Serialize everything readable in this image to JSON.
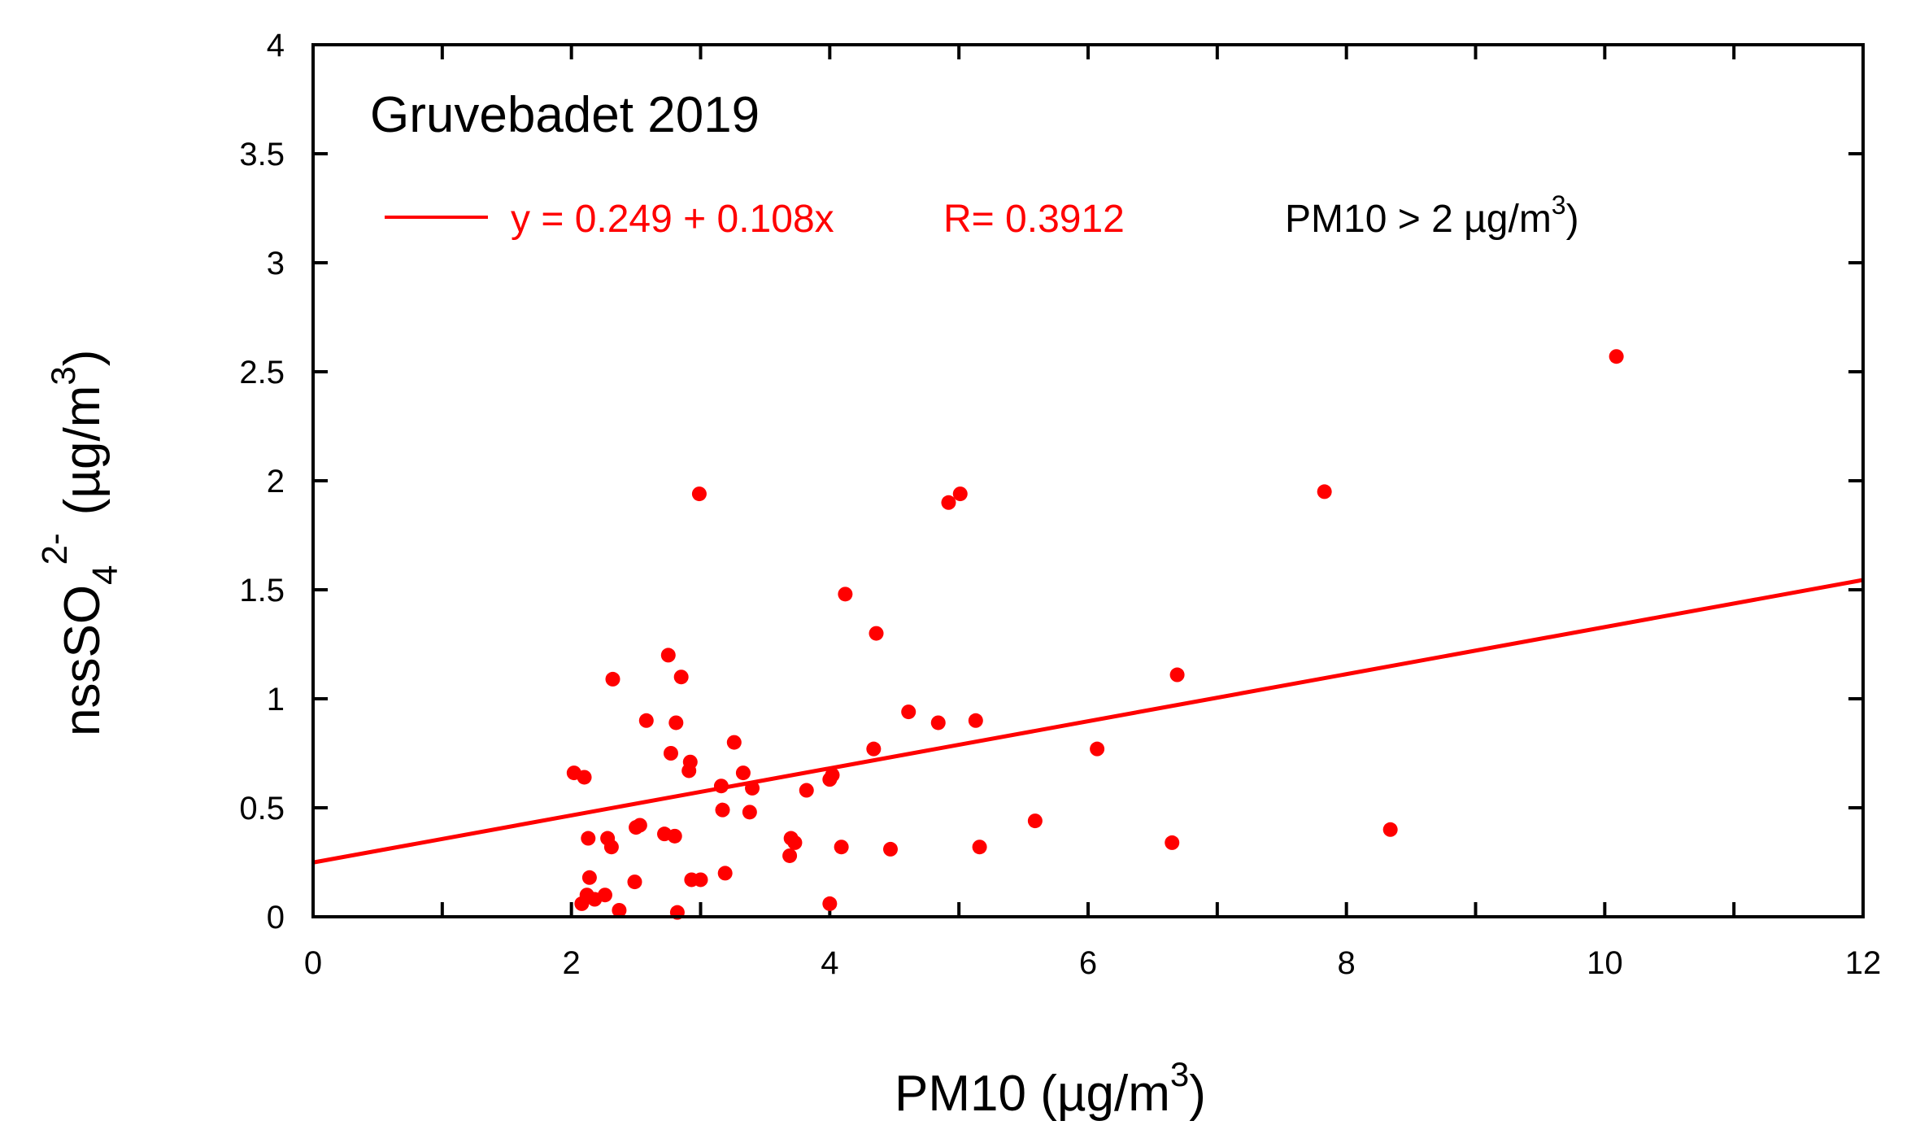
{
  "chart_data": {
    "type": "scatter",
    "title": "Gruvebadet 2019",
    "xlabel": "PM10 (µg/m3)",
    "xlabel_parts": {
      "prefix": "PM10 (µg/m",
      "sup": "3",
      "suffix": ")"
    },
    "ylabel": "nssSO4 2- (µg/m3)",
    "ylabel_parts": {
      "prefix": "nssSO",
      "sub": "4",
      "sup": "2-",
      "unit_prefix": "(µg/m",
      "unit_sup": "3",
      "unit_suffix": ")"
    },
    "xlim": [
      0,
      12
    ],
    "ylim": [
      0,
      4
    ],
    "xticks": [
      0,
      2,
      4,
      6,
      8,
      10,
      12
    ],
    "yticks": [
      0,
      0.5,
      1,
      1.5,
      2,
      2.5,
      3,
      3.5,
      4
    ],
    "xtick_labels": [
      "0",
      "2",
      "4",
      "6",
      "8",
      "10",
      "12"
    ],
    "ytick_labels": [
      "0",
      "0.5",
      "1",
      "1.5",
      "2",
      "2.5",
      "3",
      "3.5",
      "4"
    ],
    "grid": false,
    "color": "#ff0000",
    "fit": {
      "intercept": 0.249,
      "slope": 0.108,
      "equation": "y = 0.249 + 0.108x",
      "r_label": "R= 0.3912",
      "x_range": [
        0,
        12
      ]
    },
    "annotation": {
      "prefix": "PM10 > 2 µg/m",
      "sup": "3",
      "suffix": ")"
    },
    "points": [
      [
        2.02,
        0.66
      ],
      [
        2.1,
        0.64
      ],
      [
        2.08,
        0.06
      ],
      [
        2.12,
        0.1
      ],
      [
        2.13,
        0.36
      ],
      [
        2.14,
        0.18
      ],
      [
        2.18,
        0.08
      ],
      [
        2.26,
        0.1
      ],
      [
        2.28,
        0.36
      ],
      [
        2.31,
        0.32
      ],
      [
        2.32,
        1.09
      ],
      [
        2.37,
        0.03
      ],
      [
        2.49,
        0.16
      ],
      [
        2.5,
        0.41
      ],
      [
        2.53,
        0.42
      ],
      [
        2.58,
        0.9
      ],
      [
        2.72,
        0.38
      ],
      [
        2.75,
        1.2
      ],
      [
        2.77,
        0.75
      ],
      [
        2.8,
        0.37
      ],
      [
        2.81,
        0.89
      ],
      [
        2.82,
        0.02
      ],
      [
        2.85,
        1.1
      ],
      [
        2.91,
        0.67
      ],
      [
        2.92,
        0.71
      ],
      [
        2.93,
        0.17
      ],
      [
        2.99,
        1.94
      ],
      [
        3.0,
        0.17
      ],
      [
        3.16,
        0.6
      ],
      [
        3.17,
        0.49
      ],
      [
        3.19,
        0.2
      ],
      [
        3.26,
        0.8
      ],
      [
        3.33,
        0.66
      ],
      [
        3.38,
        0.48
      ],
      [
        3.4,
        0.59
      ],
      [
        3.69,
        0.28
      ],
      [
        3.7,
        0.36
      ],
      [
        3.73,
        0.34
      ],
      [
        3.82,
        0.58
      ],
      [
        4.0,
        0.06
      ],
      [
        4.0,
        0.63
      ],
      [
        4.02,
        0.65
      ],
      [
        4.09,
        0.32
      ],
      [
        4.12,
        1.48
      ],
      [
        4.34,
        0.77
      ],
      [
        4.36,
        1.3
      ],
      [
        4.47,
        0.31
      ],
      [
        4.61,
        0.94
      ],
      [
        4.84,
        0.89
      ],
      [
        4.92,
        1.9
      ],
      [
        5.01,
        1.94
      ],
      [
        5.13,
        0.9
      ],
      [
        5.16,
        0.32
      ],
      [
        5.59,
        0.44
      ],
      [
        6.07,
        0.77
      ],
      [
        6.65,
        0.34
      ],
      [
        6.69,
        1.11
      ],
      [
        7.83,
        1.95
      ],
      [
        8.34,
        0.4
      ],
      [
        10.09,
        2.57
      ]
    ]
  }
}
